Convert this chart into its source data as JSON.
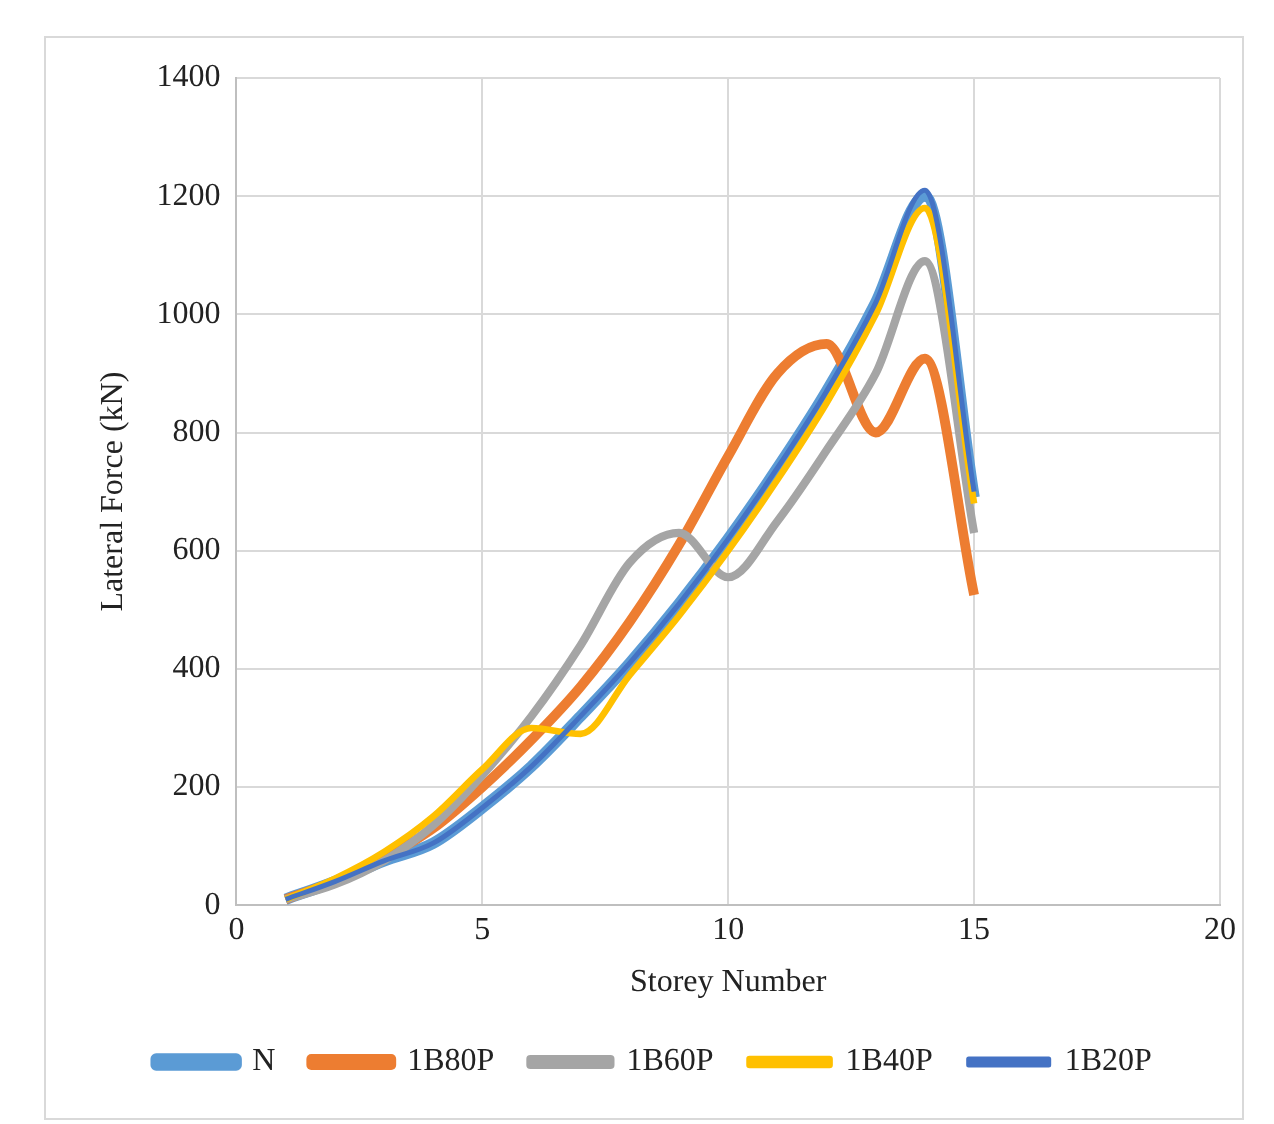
{
  "chart_data": {
    "type": "line",
    "xlabel": "Storey Number",
    "ylabel": "Lateral Force (kN)",
    "x": [
      1,
      2,
      3,
      4,
      5,
      6,
      7,
      8,
      9,
      10,
      11,
      12,
      13,
      14,
      15
    ],
    "series": [
      {
        "name": "N",
        "color": "#5b9bd5",
        "values": [
          10,
          40,
          75,
          105,
          165,
          235,
          320,
          410,
          510,
          620,
          740,
          870,
          1020,
          1200,
          690
        ]
      },
      {
        "name": "1B80P",
        "color": "#ed7d31",
        "values": [
          10,
          40,
          80,
          130,
          200,
          280,
          370,
          480,
          610,
          760,
          900,
          950,
          800,
          925,
          525
        ]
      },
      {
        "name": "1B60P",
        "color": "#a5a5a5",
        "values": [
          10,
          35,
          75,
          135,
          220,
          320,
          440,
          580,
          630,
          555,
          650,
          770,
          900,
          1090,
          630
        ]
      },
      {
        "name": "1B40P",
        "color": "#ffc000",
        "values": [
          10,
          45,
          90,
          150,
          230,
          300,
          290,
          390,
          490,
          600,
          720,
          850,
          1000,
          1180,
          680
        ]
      },
      {
        "name": "1B20P",
        "color": "#4472c4",
        "values": [
          10,
          40,
          75,
          105,
          165,
          235,
          320,
          410,
          510,
          620,
          740,
          870,
          1020,
          1210,
          700
        ]
      }
    ],
    "xlim": [
      0,
      20
    ],
    "xticks": [
      0,
      5,
      10,
      15,
      20
    ],
    "ylim": [
      0,
      1400
    ],
    "yticks": [
      0,
      200,
      400,
      600,
      800,
      1000,
      1200,
      1400
    ],
    "grid": true,
    "legend": "bottom",
    "marker": "none",
    "line_style": "solid"
  }
}
